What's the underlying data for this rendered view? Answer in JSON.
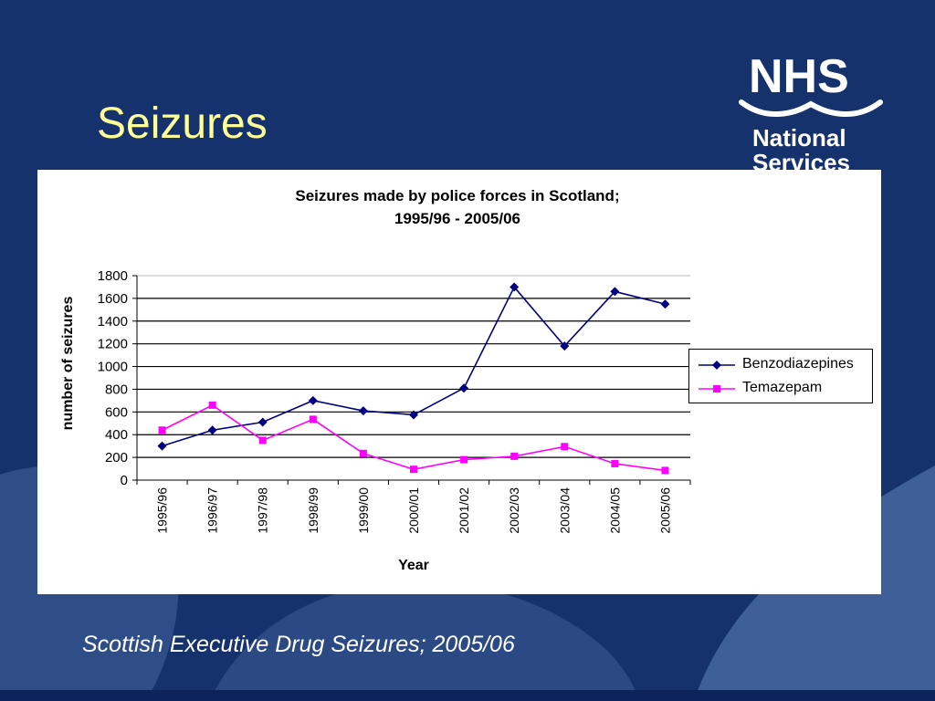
{
  "slide": {
    "title": "Seizures",
    "caption": "Scottish Executive Drug Seizures; 2005/06",
    "background_color": "#15326d",
    "title_color": "#ffff99"
  },
  "logo": {
    "mark": "NHS",
    "org_line1": "National",
    "org_line2": "Services"
  },
  "chart_data": {
    "type": "line",
    "title_line1": "Seizures made by police forces in Scotland;",
    "title_line2": "1995/96 - 2005/06",
    "xlabel": "Year",
    "ylabel": "number of seizures",
    "ylim": [
      0,
      1800
    ],
    "yticks": [
      0,
      200,
      400,
      600,
      800,
      1000,
      1200,
      1400,
      1600,
      1800
    ],
    "grid": true,
    "legend_position": "right",
    "categories": [
      "1995/96",
      "1996/97",
      "1997/98",
      "1998/99",
      "1999/00",
      "2000/01",
      "2001/02",
      "2002/03",
      "2003/04",
      "2004/05",
      "2005/06"
    ],
    "series": [
      {
        "name": "Benzodiazepines",
        "color": "#000080",
        "marker": "diamond",
        "values": [
          300,
          440,
          510,
          700,
          610,
          575,
          810,
          1700,
          1180,
          1660,
          1550
        ]
      },
      {
        "name": "Temazepam",
        "color": "#ff00ff",
        "marker": "square",
        "values": [
          440,
          660,
          350,
          535,
          235,
          95,
          180,
          210,
          295,
          145,
          85
        ]
      }
    ]
  }
}
